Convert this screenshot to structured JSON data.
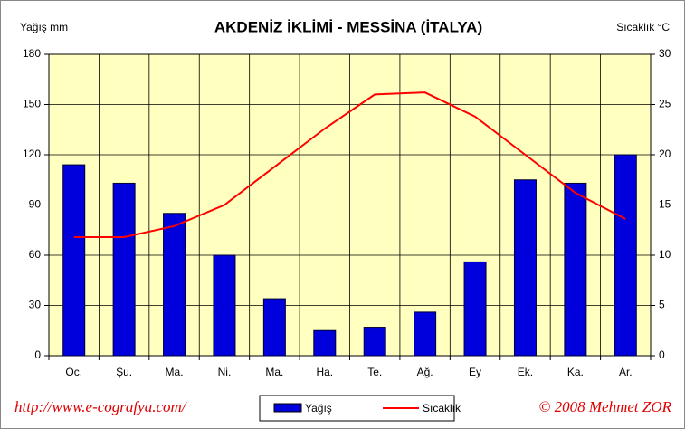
{
  "chart_data": {
    "type": "combo",
    "title": "AKDENİZ İKLİMİ - MESSİNA (İTALYA)",
    "y_label": "Yağış mm",
    "y2_label": "Sıcaklık  °C",
    "categories": [
      "Oc.",
      "Şu.",
      "Ma.",
      "Ni.",
      "Ma.",
      "Ha.",
      "Te.",
      "Ağ.",
      "Ey",
      "Ek.",
      "Ka.",
      "Ar."
    ],
    "series": [
      {
        "name": "Yağış",
        "type": "bar",
        "color": "#0000dd",
        "values": [
          114,
          103,
          85,
          60,
          34,
          15,
          17,
          26,
          56,
          105,
          103,
          120
        ]
      },
      {
        "name": "Sıcaklık",
        "type": "line",
        "axis": "y2",
        "color": "#ff0000",
        "values": [
          11.8,
          11.8,
          12.9,
          15,
          18.8,
          22.6,
          26,
          26.2,
          23.8,
          20,
          16.2,
          13.6
        ]
      }
    ],
    "ylim": [
      0,
      180
    ],
    "yticks": [
      0,
      30,
      60,
      90,
      120,
      150,
      180
    ],
    "y2lim": [
      0,
      30
    ],
    "y2ticks": [
      0,
      5,
      10,
      15,
      20,
      25,
      30
    ],
    "grid": true,
    "plot_background": "#ffffc0",
    "annotations": [
      "http://www.e-cografya.com/",
      "© 2008  Mehmet ZOR"
    ]
  }
}
